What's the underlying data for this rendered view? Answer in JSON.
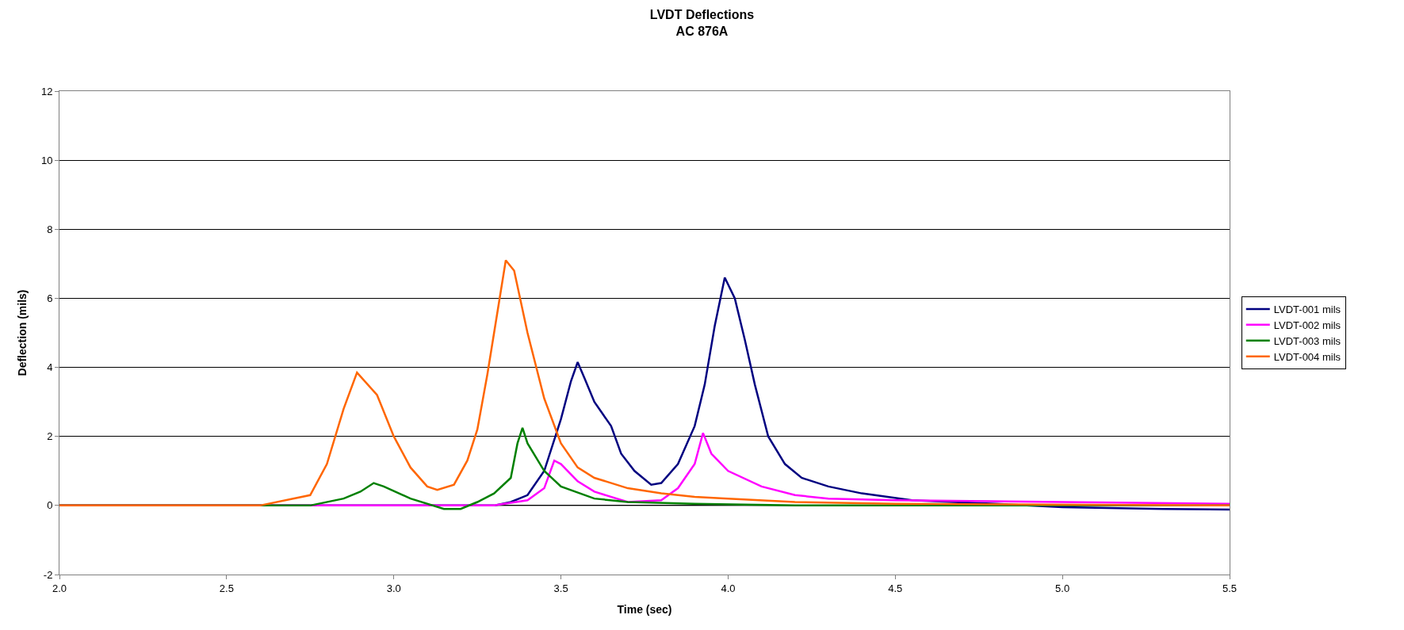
{
  "chart_data": {
    "type": "line",
    "title": "LVDT Deflections\nAC 876A",
    "xlabel": "Time (sec)",
    "ylabel": "Deflection (mils)",
    "xlim": [
      2.0,
      5.5
    ],
    "xticks": [
      {
        "value": 2.0,
        "label": "2.0"
      },
      {
        "value": 2.5,
        "label": "2.5"
      },
      {
        "value": 3.0,
        "label": "3.0"
      },
      {
        "value": 3.5,
        "label": "3.5"
      },
      {
        "value": 4.0,
        "label": "4.0"
      },
      {
        "value": 4.5,
        "label": "4.5"
      },
      {
        "value": 5.0,
        "label": "5.0"
      },
      {
        "value": 5.5,
        "label": "5.5"
      }
    ],
    "ylim": [
      -2,
      12
    ],
    "yticks": [
      -2,
      0,
      2,
      4,
      6,
      8,
      10,
      12
    ],
    "grid": "y",
    "legend": "right",
    "marker": "none",
    "line_style": "solid",
    "series": [
      {
        "name": "LVDT-001 mils",
        "color": "#000080",
        "x": [
          2.0,
          3.3,
          3.35,
          3.4,
          3.45,
          3.5,
          3.53,
          3.55,
          3.57,
          3.6,
          3.65,
          3.68,
          3.72,
          3.77,
          3.8,
          3.85,
          3.9,
          3.93,
          3.96,
          3.99,
          4.02,
          4.05,
          4.08,
          4.12,
          4.17,
          4.22,
          4.3,
          4.4,
          4.55,
          4.8,
          5.0,
          5.3,
          5.5
        ],
        "values": [
          0,
          0,
          0.1,
          0.3,
          1.0,
          2.5,
          3.6,
          4.15,
          3.7,
          3.0,
          2.3,
          1.5,
          1.0,
          0.6,
          0.65,
          1.2,
          2.3,
          3.5,
          5.2,
          6.6,
          6.0,
          4.8,
          3.5,
          2.0,
          1.2,
          0.8,
          0.55,
          0.35,
          0.15,
          0.05,
          -0.05,
          -0.1,
          -0.12
        ]
      },
      {
        "name": "LVDT-002 mils",
        "color": "#ff00ff",
        "x": [
          2.0,
          3.3,
          3.4,
          3.45,
          3.48,
          3.5,
          3.55,
          3.6,
          3.7,
          3.8,
          3.85,
          3.9,
          3.925,
          3.95,
          4.0,
          4.1,
          4.2,
          4.3,
          4.5,
          5.0,
          5.5
        ],
        "values": [
          0,
          0,
          0.15,
          0.5,
          1.3,
          1.2,
          0.7,
          0.4,
          0.1,
          0.15,
          0.5,
          1.2,
          2.1,
          1.5,
          1.0,
          0.55,
          0.3,
          0.2,
          0.15,
          0.1,
          0.05
        ]
      },
      {
        "name": "LVDT-003 mils",
        "color": "#008000",
        "x": [
          2.0,
          2.75,
          2.85,
          2.9,
          2.94,
          2.97,
          3.05,
          3.15,
          3.2,
          3.25,
          3.3,
          3.35,
          3.37,
          3.385,
          3.4,
          3.45,
          3.5,
          3.6,
          3.7,
          3.9,
          4.2,
          5.5
        ],
        "values": [
          0,
          0,
          0.2,
          0.4,
          0.65,
          0.55,
          0.2,
          -0.1,
          -0.1,
          0.1,
          0.35,
          0.8,
          1.8,
          2.25,
          1.8,
          1.0,
          0.55,
          0.2,
          0.1,
          0.05,
          0,
          0
        ]
      },
      {
        "name": "LVDT-004 mils",
        "color": "#ff6600",
        "x": [
          2.0,
          2.6,
          2.75,
          2.8,
          2.85,
          2.89,
          2.95,
          3.0,
          3.05,
          3.1,
          3.13,
          3.18,
          3.22,
          3.25,
          3.28,
          3.3,
          3.32,
          3.335,
          3.36,
          3.4,
          3.45,
          3.5,
          3.55,
          3.6,
          3.7,
          3.8,
          3.9,
          4.0,
          4.2,
          4.5,
          5.5
        ],
        "values": [
          0,
          0,
          0.3,
          1.2,
          2.8,
          3.85,
          3.2,
          2.0,
          1.1,
          0.55,
          0.45,
          0.6,
          1.3,
          2.2,
          3.8,
          5.0,
          6.2,
          7.1,
          6.8,
          5.0,
          3.1,
          1.8,
          1.1,
          0.8,
          0.5,
          0.35,
          0.25,
          0.2,
          0.1,
          0.05,
          0
        ]
      }
    ]
  }
}
